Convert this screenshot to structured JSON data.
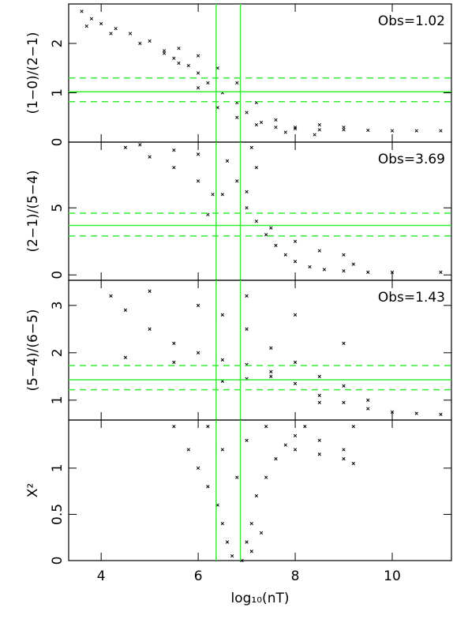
{
  "chart_data": [
    {
      "type": "scatter",
      "ylabel": "(1−0)/(2−1)",
      "annotation": "Obs=1.02",
      "xlim": [
        3.33,
        11.22
      ],
      "xticks": [
        4,
        6,
        8,
        10
      ],
      "ylim": [
        0,
        2.8
      ],
      "yticks": [
        0,
        1,
        2
      ],
      "hline": 1.02,
      "hlines_dashed": [
        0.82,
        1.3
      ],
      "vlines": [
        6.37,
        6.87
      ],
      "color": "#000000",
      "line_color": "#33ee33",
      "x": [
        3.6,
        3.8,
        4,
        4.3,
        4.6,
        5,
        5.3,
        5.5,
        5.8,
        6,
        6.2,
        6.5,
        6.8,
        7,
        7.3,
        7.6,
        8,
        8.5,
        9,
        9.5,
        10,
        10.5,
        11,
        3.7,
        4.2,
        4.8,
        5.3,
        5.6,
        6,
        6.4,
        6.8,
        7.2,
        7.6,
        8,
        8.5,
        9,
        5.6,
        6,
        6.4,
        6.8,
        7.2,
        7.8,
        8.4
      ],
      "y": [
        2.65,
        2.5,
        2.4,
        2.3,
        2.2,
        2.05,
        1.85,
        1.7,
        1.55,
        1.4,
        1.2,
        1.0,
        0.8,
        0.6,
        0.4,
        0.3,
        0.27,
        0.25,
        0.25,
        0.24,
        0.23,
        0.23,
        0.23,
        2.35,
        2.2,
        2.0,
        1.8,
        1.9,
        1.75,
        1.5,
        1.2,
        0.8,
        0.45,
        0.3,
        0.35,
        0.3,
        1.6,
        1.1,
        0.7,
        0.5,
        0.35,
        0.2,
        0.15
      ]
    },
    {
      "type": "scatter",
      "ylabel": "(2−1)/(5−4)",
      "annotation": "Obs=3.69",
      "xlim": [
        3.33,
        11.22
      ],
      "xticks": [
        4,
        6,
        8,
        10
      ],
      "ylim": [
        -0.4,
        9.9
      ],
      "yticks": [
        0,
        5
      ],
      "hline": 3.69,
      "hlines_dashed": [
        2.9,
        4.6
      ],
      "vlines": [
        6.37,
        6.87
      ],
      "color": "#000000",
      "line_color": "#33ee33",
      "x": [
        4.5,
        5,
        5.5,
        6,
        6.3,
        6.6,
        6.8,
        7,
        7.2,
        7.4,
        7.6,
        7.8,
        8,
        8.3,
        8.6,
        9,
        9.5,
        10,
        11,
        5.5,
        6,
        6.5,
        7,
        7.5,
        8,
        8.5,
        9,
        9.2,
        4.8,
        6.2,
        7.2,
        7.1
      ],
      "y": [
        9.5,
        8.8,
        8,
        7,
        6,
        8.5,
        7,
        5,
        4,
        3,
        2.2,
        1.5,
        1,
        0.6,
        0.4,
        0.3,
        0.2,
        0.2,
        0.2,
        9.3,
        9,
        6,
        6.2,
        3.5,
        2.5,
        1.8,
        1.5,
        0.8,
        9.7,
        4.5,
        8,
        9.5
      ]
    },
    {
      "type": "scatter",
      "ylabel": "(5−4)/(6−5)",
      "annotation": "Obs=1.43",
      "xlim": [
        3.33,
        11.22
      ],
      "xticks": [
        4,
        6,
        8,
        10
      ],
      "ylim": [
        0.58,
        3.53
      ],
      "yticks": [
        1,
        2,
        3
      ],
      "hline": 1.43,
      "hlines_dashed": [
        1.22,
        1.73
      ],
      "vlines": [
        6.37,
        6.87
      ],
      "color": "#000000",
      "line_color": "#33ee33",
      "x": [
        4.2,
        4.5,
        5,
        5.5,
        6,
        6.5,
        7,
        7.5,
        8,
        8.5,
        9,
        9.5,
        10,
        10.5,
        11,
        5,
        6,
        6.5,
        7,
        7.5,
        8,
        8.5,
        9,
        9.5,
        6.5,
        7,
        7.5,
        8.5,
        7,
        8,
        9,
        4.5,
        5.5
      ],
      "y": [
        3.2,
        2.9,
        2.5,
        2.2,
        2,
        1.85,
        1.75,
        1.6,
        1.35,
        1.1,
        0.95,
        0.82,
        0.75,
        0.72,
        0.7,
        3.3,
        3.0,
        2.8,
        2.5,
        2.1,
        1.8,
        1.5,
        1.3,
        1.0,
        1.4,
        1.45,
        1.5,
        0.95,
        3.2,
        2.8,
        2.2,
        1.9,
        1.8
      ]
    },
    {
      "type": "scatter",
      "ylabel": "X²",
      "xlabel": "log₁₀(nT)",
      "xlim": [
        3.33,
        11.22
      ],
      "xticks": [
        4,
        6,
        8,
        10
      ],
      "ylim": [
        0,
        1.52
      ],
      "yticks": [
        0,
        0.5,
        1
      ],
      "vlines": [
        6.37,
        6.87
      ],
      "color": "#000000",
      "line_color": "#33ee33",
      "x": [
        5.5,
        5.8,
        6,
        6.2,
        6.4,
        6.5,
        6.6,
        6.7,
        6.9,
        7,
        7.1,
        7.2,
        7.4,
        7.6,
        7.8,
        8,
        8.2,
        8.5,
        9,
        9,
        9.2,
        7,
        7.4,
        6.5,
        6.2,
        6.8,
        7.1,
        7.3,
        8,
        8.5,
        9.2
      ],
      "y": [
        1.45,
        1.2,
        1.0,
        0.8,
        0.6,
        0.4,
        0.2,
        0.05,
        0.0,
        0.2,
        0.4,
        0.7,
        0.9,
        1.1,
        1.25,
        1.35,
        1.45,
        1.3,
        1.2,
        1.1,
        1.45,
        1.3,
        1.45,
        1.2,
        1.45,
        0.9,
        0.1,
        0.3,
        1.2,
        1.15,
        1.05
      ]
    }
  ]
}
